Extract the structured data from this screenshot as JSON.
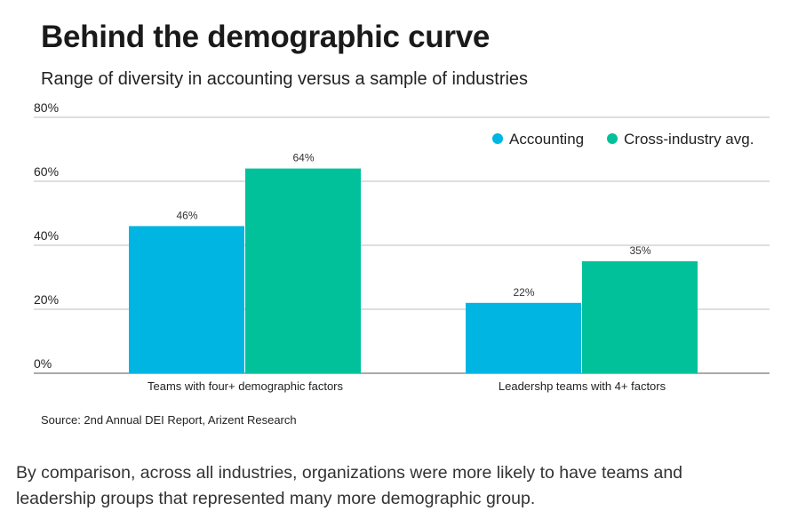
{
  "chart_data": {
    "type": "bar",
    "title": "Behind the demographic curve",
    "subtitle": "Range of diversity in accounting versus a sample of industries",
    "categories": [
      "Teams with four+ demographic factors",
      "Leadershp teams with 4+ factors"
    ],
    "series": [
      {
        "name": "Accounting",
        "values": [
          46,
          22
        ],
        "color": "#00b5e2"
      },
      {
        "name": "Cross-industry avg.",
        "values": [
          64,
          35
        ],
        "color": "#00c19a"
      }
    ],
    "value_labels": [
      [
        "46%",
        "22%"
      ],
      [
        "64%",
        "35%"
      ]
    ],
    "ylim": [
      0,
      80
    ],
    "yticks": [
      0,
      20,
      40,
      60,
      80
    ],
    "ytick_labels": [
      "0%",
      "20%",
      "40%",
      "60%",
      "80%"
    ],
    "grid": true,
    "legend_position": "top-right",
    "xlabel": "",
    "ylabel": ""
  },
  "source": "Source: 2nd Annual DEI Report, Arizent Research",
  "caption_lines": [
    "By comparison, across all industries, organizations were more likely to have teams and",
    "leadership groups that represented many more demographic group."
  ]
}
